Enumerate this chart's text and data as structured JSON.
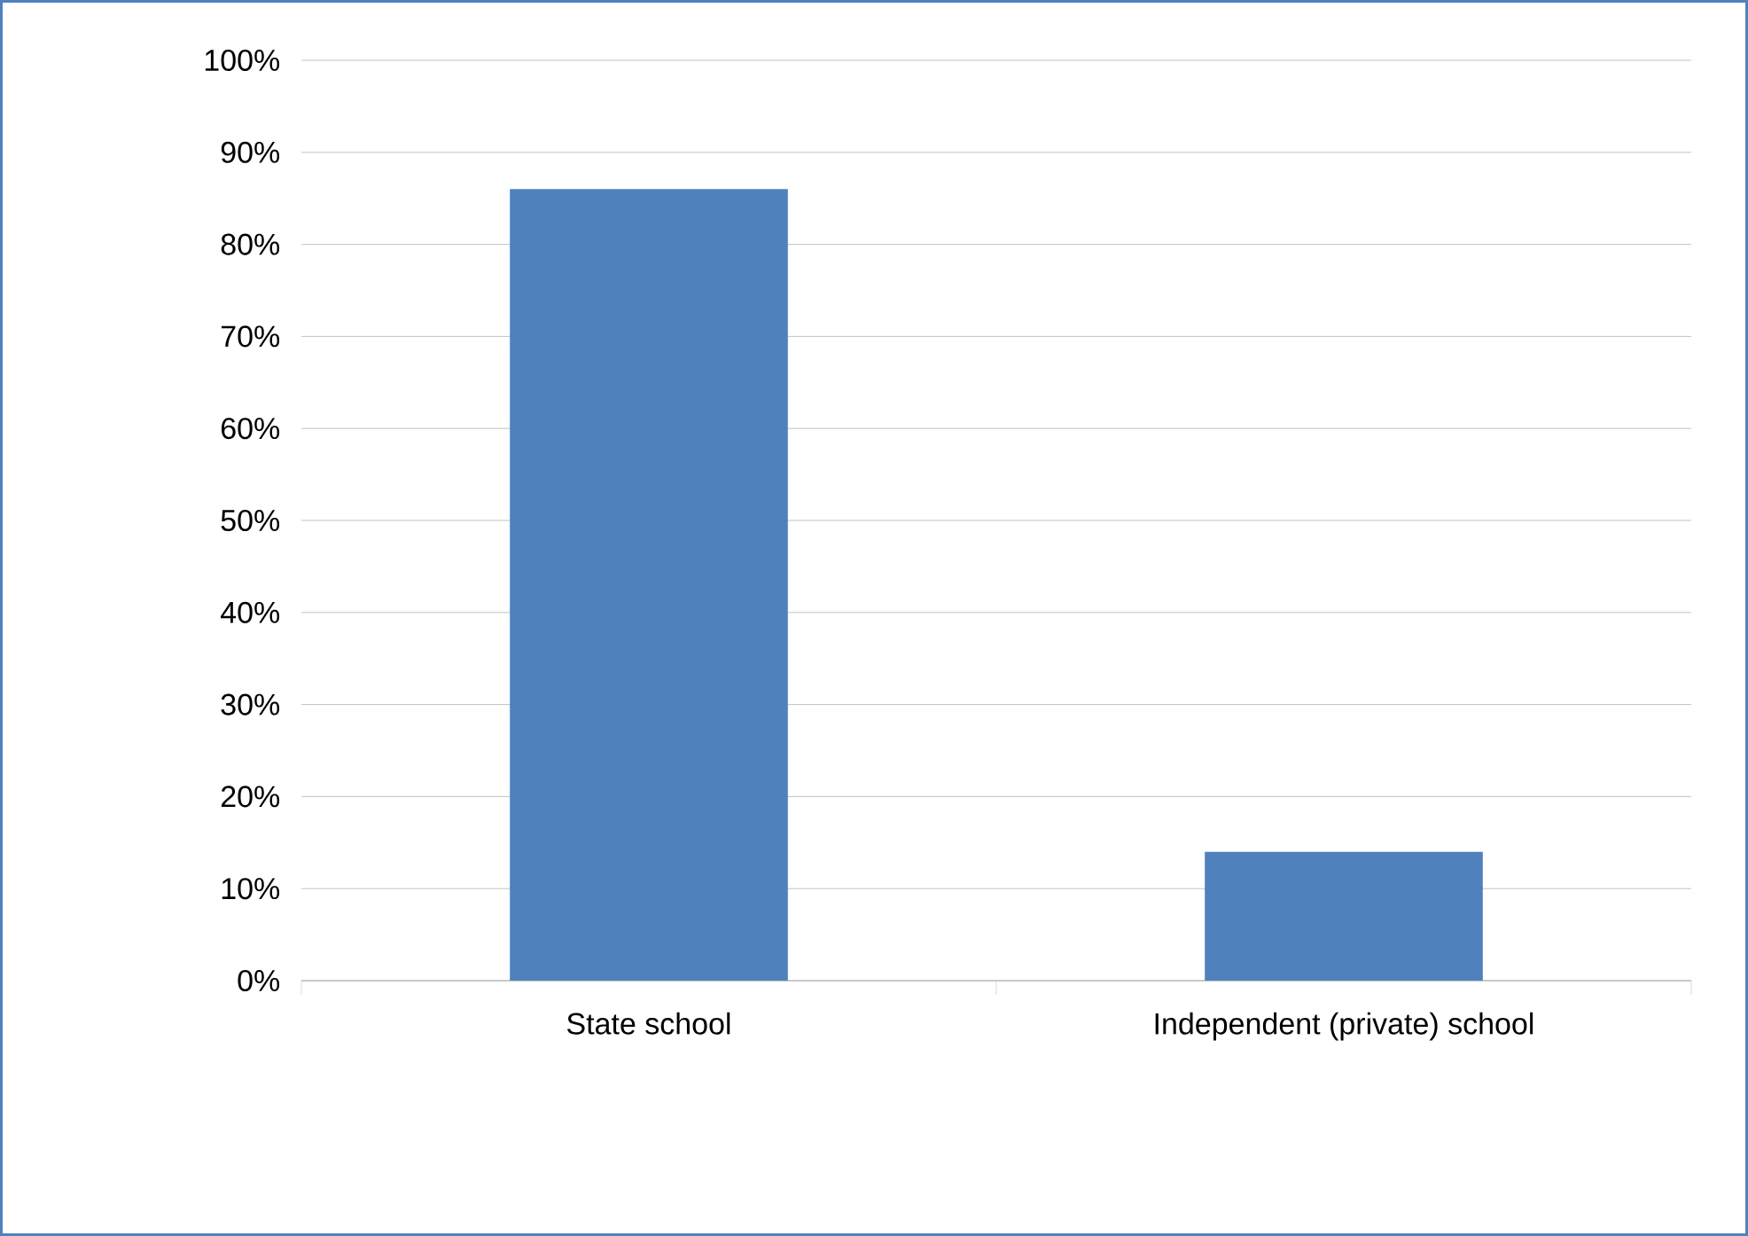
{
  "chart_data": {
    "type": "bar",
    "categories": [
      "State school",
      "Independent (private) school"
    ],
    "values": [
      86,
      14
    ],
    "color": "#4f81bd",
    "ylim": [
      0,
      100
    ],
    "yticks": [
      {
        "value": 0,
        "label": "0%"
      },
      {
        "value": 10,
        "label": "10%"
      },
      {
        "value": 20,
        "label": "20%"
      },
      {
        "value": 30,
        "label": "30%"
      },
      {
        "value": 40,
        "label": "40%"
      },
      {
        "value": 50,
        "label": "50%"
      },
      {
        "value": 60,
        "label": "60%"
      },
      {
        "value": 70,
        "label": "70%"
      },
      {
        "value": 80,
        "label": "80%"
      },
      {
        "value": 90,
        "label": "90%"
      },
      {
        "value": 100,
        "label": "100%"
      }
    ],
    "grid": "y"
  }
}
